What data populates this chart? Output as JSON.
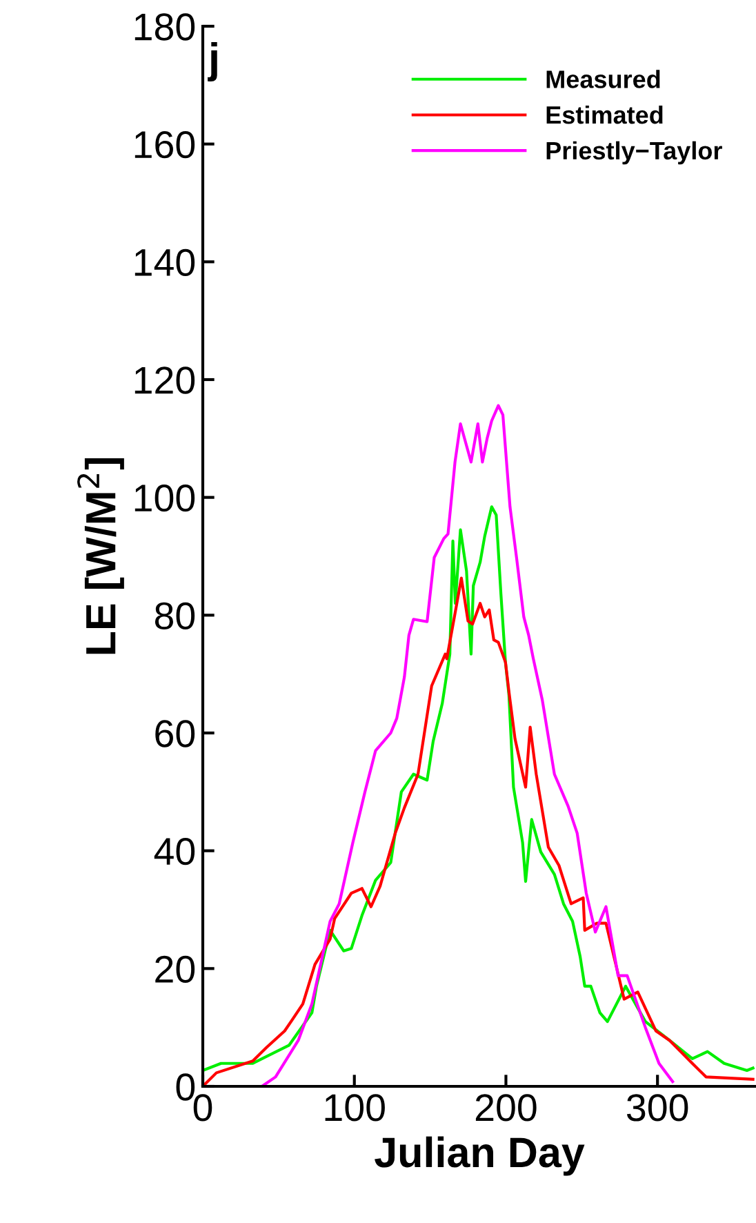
{
  "chart_data": {
    "type": "line",
    "xlabel": "Julian Day",
    "ylabel": "LE [W/M$^{2}$]",
    "annotations": [
      "j"
    ],
    "xlim": [
      0,
      365
    ],
    "xticks": [
      0,
      100,
      200,
      300
    ],
    "ylim": [
      0,
      180
    ],
    "yticks": [
      0,
      20,
      40,
      60,
      80,
      100,
      120,
      140,
      160,
      180
    ],
    "grid": false,
    "legend": "top right",
    "series": [
      {
        "name": "Measured",
        "color": "#00ee00",
        "x": [
          0,
          12,
          33,
          57,
          72,
          75,
          84,
          93,
          98,
          105,
          114,
          124,
          131,
          139,
          148,
          152,
          158,
          163,
          165,
          166.6,
          170,
          174,
          177,
          178.5,
          183,
          186,
          190.6,
          193.6,
          196.7,
          199.7,
          202,
          205,
          211,
          213,
          217,
          223,
          232,
          238,
          244,
          249,
          252,
          256,
          262,
          267,
          279,
          292,
          308,
          323,
          333,
          344,
          359,
          363
        ],
        "values": [
          2.7,
          3.9,
          3.9,
          7,
          12.5,
          17,
          26.5,
          23,
          23.4,
          29,
          35,
          38,
          50,
          53,
          52,
          58.6,
          65,
          73.4,
          92.6,
          82,
          94.5,
          87.5,
          73.4,
          85,
          89,
          93.4,
          98.4,
          97,
          83.6,
          72,
          66.4,
          50.8,
          41.4,
          34.8,
          45.3,
          39.8,
          36,
          31,
          28,
          22,
          17,
          17,
          12.5,
          11,
          17,
          11,
          7.8,
          4.7,
          5.9,
          3.9,
          2.7,
          3.1
        ]
      },
      {
        "name": "Estimated",
        "color": "#ff0000",
        "x": [
          0,
          9,
          33,
          42,
          54,
          59,
          66,
          74,
          84,
          87,
          98,
          105,
          111,
          117,
          127,
          133,
          142,
          151,
          160,
          161,
          166,
          170.6,
          175,
          178,
          183,
          186,
          189,
          192,
          195,
          199.7,
          202,
          206,
          213,
          216,
          220,
          228,
          235,
          243,
          251,
          252,
          260,
          266,
          278,
          287,
          299,
          308,
          323,
          332,
          363
        ],
        "values": [
          0,
          2.3,
          4.3,
          6.6,
          9.4,
          11.3,
          14,
          20.7,
          25,
          28.5,
          32.8,
          33.6,
          30.5,
          34,
          43,
          47.3,
          53,
          68,
          73.4,
          72.6,
          79.7,
          86.3,
          79,
          78.5,
          82,
          79.7,
          80.9,
          75.8,
          75.4,
          72,
          67,
          59,
          50.8,
          61,
          53,
          40.6,
          37.5,
          31,
          32,
          26.5,
          27.7,
          27.7,
          14.8,
          16,
          9.4,
          7.8,
          3.9,
          1.6,
          1.2
        ]
      },
      {
        "name": "Priestly−Taylor",
        "color": "#ff00ff",
        "x": [
          39,
          48,
          63,
          72,
          84,
          90,
          99,
          107,
          114,
          124,
          128,
          133,
          136,
          139,
          148,
          152.7,
          159,
          161.8,
          166.4,
          170,
          177,
          181.5,
          184.5,
          187.6,
          190.6,
          195,
          198,
          202.7,
          207,
          211.8,
          215,
          218,
          224,
          232,
          241,
          247,
          253,
          259,
          266,
          274,
          280,
          292,
          301,
          310
        ],
        "values": [
          0,
          1.6,
          7.8,
          14,
          28,
          31,
          41.4,
          50,
          57,
          60,
          62.5,
          69.5,
          76.6,
          79.3,
          78.9,
          89.8,
          93,
          93.8,
          106,
          112.5,
          106,
          112.5,
          106,
          110,
          113,
          115.6,
          114,
          98.4,
          89.8,
          79.7,
          76.6,
          72.7,
          65.6,
          53,
          47.6,
          43,
          32.8,
          26.2,
          30.5,
          18.8,
          18.8,
          10,
          3.9,
          0.8
        ]
      }
    ]
  }
}
